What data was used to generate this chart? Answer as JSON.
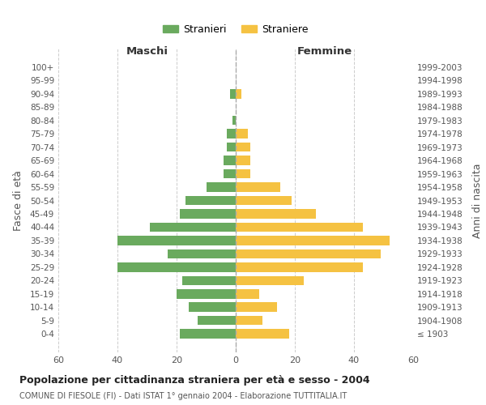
{
  "age_groups": [
    "100+",
    "95-99",
    "90-94",
    "85-89",
    "80-84",
    "75-79",
    "70-74",
    "65-69",
    "60-64",
    "55-59",
    "50-54",
    "45-49",
    "40-44",
    "35-39",
    "30-34",
    "25-29",
    "20-24",
    "15-19",
    "10-14",
    "5-9",
    "0-4"
  ],
  "birth_years": [
    "≤ 1903",
    "1904-1908",
    "1909-1913",
    "1914-1918",
    "1919-1923",
    "1924-1928",
    "1929-1933",
    "1934-1938",
    "1939-1943",
    "1944-1948",
    "1949-1953",
    "1954-1958",
    "1959-1963",
    "1964-1968",
    "1969-1973",
    "1974-1978",
    "1979-1983",
    "1984-1988",
    "1989-1993",
    "1994-1998",
    "1999-2003"
  ],
  "maschi": [
    0,
    0,
    2,
    0,
    1,
    3,
    3,
    4,
    4,
    10,
    17,
    19,
    29,
    40,
    23,
    40,
    18,
    20,
    16,
    13,
    19
  ],
  "femmine": [
    0,
    0,
    2,
    0,
    0,
    4,
    5,
    5,
    5,
    15,
    19,
    27,
    43,
    52,
    49,
    43,
    23,
    8,
    14,
    9,
    18
  ],
  "color_maschi": "#6aaa5e",
  "color_femmine": "#f5c242",
  "title": "Popolazione per cittadinanza straniera per età e sesso - 2004",
  "subtitle": "COMUNE DI FIESOLE (FI) - Dati ISTAT 1° gennaio 2004 - Elaborazione TUTTITALIA.IT",
  "ylabel_left": "Fasce di età",
  "ylabel_right": "Anni di nascita",
  "xlabel_maschi": "Maschi",
  "xlabel_femmine": "Femmine",
  "legend_maschi": "Stranieri",
  "legend_femmine": "Straniere",
  "xlim": 60,
  "background_color": "#ffffff",
  "grid_color": "#cccccc"
}
